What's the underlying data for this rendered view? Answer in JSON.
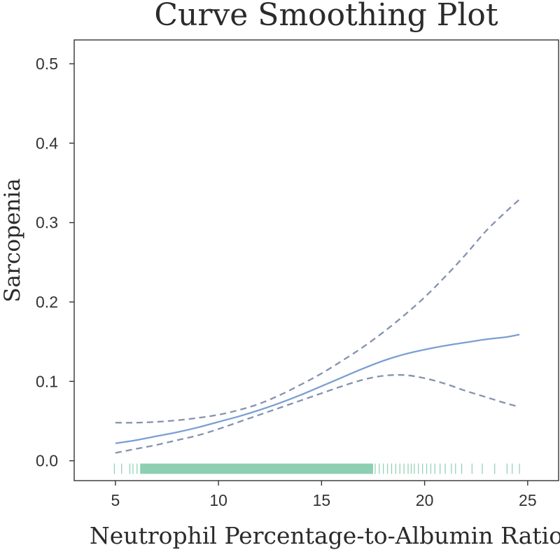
{
  "chart_data": {
    "type": "line",
    "title": "Curve Smoothing Plot",
    "xlabel": "Neutrophil Percentage-to-Albumin Ratio",
    "ylabel": "Sarcopenia",
    "xlim": [
      3,
      26.5
    ],
    "ylim": [
      -0.025,
      0.53
    ],
    "x_ticks": [
      5,
      10,
      15,
      20,
      25
    ],
    "y_ticks": [
      0.0,
      0.1,
      0.2,
      0.3,
      0.4,
      0.5
    ],
    "x_tick_labels": [
      "5",
      "10",
      "15",
      "20",
      "25"
    ],
    "y_tick_labels": [
      "0.0",
      "0.1",
      "0.2",
      "0.3",
      "0.4",
      "0.5"
    ],
    "colors": {
      "fit": "#7b9fd4",
      "ci": "#8592b0",
      "rug": "#8ccfb2",
      "axis": "#333333"
    },
    "series": [
      {
        "name": "fit",
        "style": "solid",
        "x": [
          5,
          6,
          7,
          8,
          9,
          10,
          11,
          12,
          13,
          14,
          15,
          16,
          17,
          18,
          19,
          20,
          21,
          22,
          23,
          24,
          24.6
        ],
        "y": [
          0.022,
          0.026,
          0.031,
          0.036,
          0.042,
          0.049,
          0.056,
          0.064,
          0.073,
          0.083,
          0.094,
          0.105,
          0.116,
          0.126,
          0.134,
          0.14,
          0.145,
          0.149,
          0.153,
          0.156,
          0.159
        ]
      },
      {
        "name": "upper_ci",
        "style": "dashed",
        "x": [
          5,
          6,
          7,
          8,
          9,
          10,
          11,
          12,
          13,
          14,
          15,
          16,
          17,
          18,
          19,
          20,
          21,
          22,
          23,
          24,
          24.6
        ],
        "y": [
          0.048,
          0.048,
          0.049,
          0.051,
          0.054,
          0.058,
          0.064,
          0.072,
          0.083,
          0.096,
          0.11,
          0.126,
          0.143,
          0.162,
          0.183,
          0.206,
          0.232,
          0.26,
          0.29,
          0.315,
          0.329
        ]
      },
      {
        "name": "lower_ci",
        "style": "dashed",
        "x": [
          5,
          6,
          7,
          8,
          9,
          10,
          11,
          12,
          13,
          14,
          15,
          16,
          17,
          18,
          19,
          20,
          21,
          22,
          23,
          24,
          24.6
        ],
        "y": [
          0.01,
          0.015,
          0.02,
          0.026,
          0.032,
          0.04,
          0.049,
          0.058,
          0.067,
          0.076,
          0.085,
          0.094,
          0.102,
          0.107,
          0.108,
          0.104,
          0.097,
          0.088,
          0.08,
          0.072,
          0.068
        ]
      }
    ],
    "rug": {
      "dense_ranges": [
        [
          6.2,
          17.5
        ]
      ],
      "ticks": [
        4.95,
        5.3,
        5.7,
        5.85,
        6.05,
        17.6,
        17.8,
        18.0,
        18.2,
        18.4,
        18.6,
        18.8,
        19.0,
        19.2,
        19.35,
        19.5,
        19.7,
        19.9,
        20.1,
        20.3,
        20.5,
        20.75,
        21.0,
        21.3,
        21.5,
        21.8,
        22.3,
        22.8,
        23.4,
        24.0,
        24.25,
        24.6
      ],
      "y_range": [
        -0.0165,
        -0.0035
      ]
    }
  }
}
